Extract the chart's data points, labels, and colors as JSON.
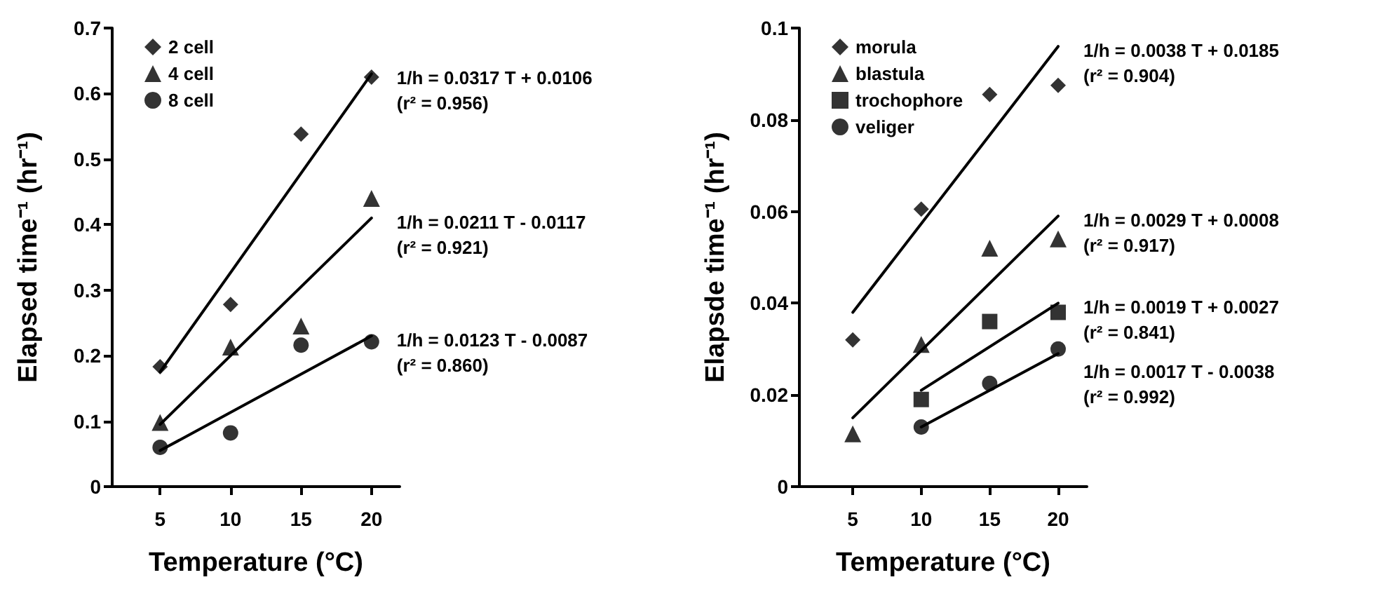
{
  "chart_data": [
    {
      "type": "scatter",
      "xlabel": "Temperature (°C)",
      "ylabel": "Elapsed time⁻¹ (hr⁻¹)",
      "x": [
        5,
        10,
        15,
        20
      ],
      "xlim": [
        1.6,
        22
      ],
      "xticks": [
        5,
        10,
        15,
        20
      ],
      "ylim": [
        0,
        0.7
      ],
      "yticks": [
        0,
        0.1,
        0.2,
        0.3,
        0.4,
        0.5,
        0.6,
        0.7
      ],
      "grid": false,
      "legend": "top left",
      "series": [
        {
          "name": "2 cell",
          "color": "#000000",
          "marker": "diamond",
          "values": [
            0.183,
            0.278,
            0.538,
            0.625
          ]
        },
        {
          "name": "4 cell",
          "color": "#000000",
          "marker": "triangle",
          "values": [
            0.098,
            0.213,
            0.245,
            0.44
          ]
        },
        {
          "name": "8 cell",
          "color": "#000000",
          "marker": "circle",
          "values": [
            0.06,
            0.082,
            0.216,
            0.221
          ]
        },
        {
          "type": "line",
          "color": "#000000",
          "marker": "none",
          "x": [
            5,
            20
          ],
          "values": [
            0.175,
            0.63
          ]
        },
        {
          "type": "line",
          "color": "#000000",
          "marker": "none",
          "x": [
            5,
            20
          ],
          "values": [
            0.095,
            0.41
          ]
        },
        {
          "type": "line",
          "color": "#000000",
          "marker": "none",
          "x": [
            5,
            20
          ],
          "values": [
            0.055,
            0.23
          ]
        }
      ],
      "annotations": [
        "1/h = 0.0317 T + 0.0106\n(r² = 0.956)",
        "1/h = 0.0211 T - 0.0117\n(r² = 0.921)",
        "1/h = 0.0123 T - 0.0087\n(r² = 0.860)"
      ]
    },
    {
      "type": "scatter",
      "xlabel": "Temperature (°C)",
      "ylabel": "Elapsde time⁻¹ (hr⁻¹)",
      "x": [
        5,
        10,
        15,
        20
      ],
      "xlim": [
        1.1,
        22.1
      ],
      "xticks": [
        5,
        10,
        15,
        20
      ],
      "ylim": [
        0,
        0.1
      ],
      "yticks": [
        0,
        0.02,
        0.04,
        0.06,
        0.08,
        0.1
      ],
      "grid": false,
      "legend": "top left",
      "series": [
        {
          "name": "morula",
          "color": "#000000",
          "marker": "diamond",
          "values": [
            0.032,
            0.0605,
            0.0855,
            0.0875
          ]
        },
        {
          "name": "blastula",
          "color": "#000000",
          "marker": "triangle",
          "values": [
            0.0115,
            0.031,
            0.052,
            0.054
          ]
        },
        {
          "name": "trochophore",
          "color": "#000000",
          "marker": "square",
          "x": [
            10,
            15,
            20
          ],
          "values": [
            0.019,
            0.036,
            0.038
          ]
        },
        {
          "name": "veliger",
          "color": "#000000",
          "marker": "circle",
          "x": [
            10,
            15,
            20
          ],
          "values": [
            0.013,
            0.0225,
            0.03
          ]
        },
        {
          "type": "line",
          "color": "#000000",
          "marker": "none",
          "x": [
            5,
            20
          ],
          "values": [
            0.038,
            0.096
          ]
        },
        {
          "type": "line",
          "color": "#000000",
          "marker": "none",
          "x": [
            5,
            20
          ],
          "values": [
            0.015,
            0.059
          ]
        },
        {
          "type": "line",
          "color": "#000000",
          "marker": "none",
          "x": [
            10,
            20
          ],
          "values": [
            0.021,
            0.04
          ]
        },
        {
          "type": "line",
          "color": "#000000",
          "marker": "none",
          "x": [
            10,
            20
          ],
          "values": [
            0.013,
            0.029
          ]
        }
      ],
      "annotations": [
        "1/h = 0.0038 T + 0.0185\n(r² = 0.904)",
        "1/h = 0.0029 T + 0.0008\n(r² = 0.917)",
        "1/h = 0.0019 T + 0.0027\n(r² = 0.841)",
        "1/h = 0.0017 T - 0.0038\n(r² = 0.992)"
      ]
    }
  ]
}
